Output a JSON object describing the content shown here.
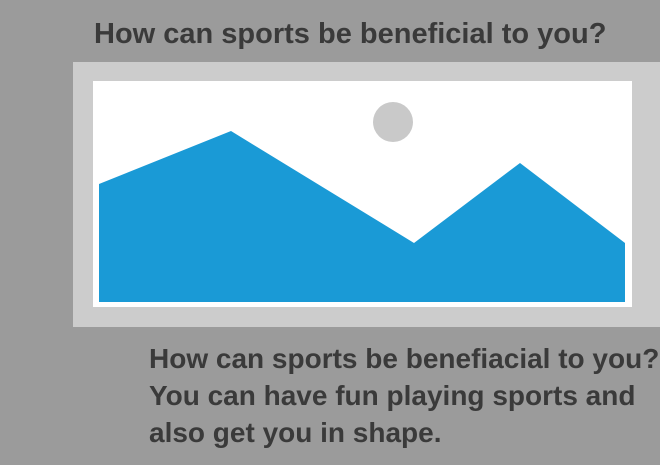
{
  "heading": "How can sports be beneficial to you?",
  "image": {
    "icon": "image-placeholder-icon",
    "colors": {
      "mountain": "#1a9ad6",
      "sun": "#c9c9c9",
      "frame": "#cccccc",
      "canvas": "#ffffff"
    }
  },
  "body": {
    "text": "How can sports be benefiacial to you? You can have fun playing sports and also get you in shape."
  },
  "colors": {
    "background": "#9b9b9b",
    "text": "#3a3a3a"
  }
}
